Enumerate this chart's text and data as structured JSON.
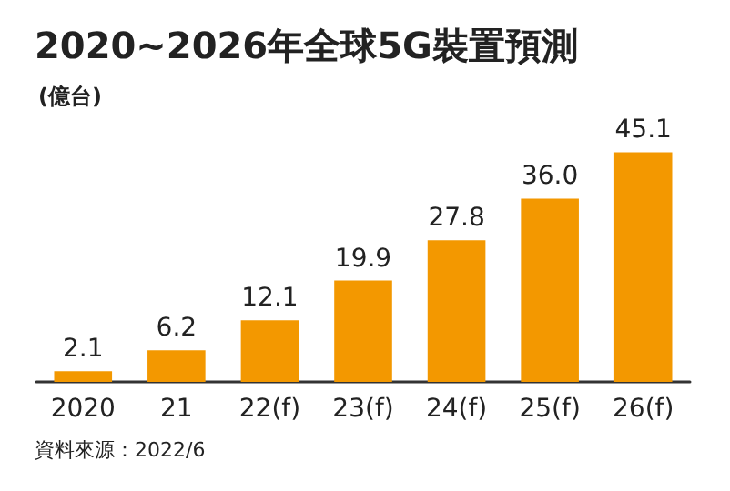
{
  "chart_data": {
    "type": "bar",
    "title": "2020~2026年全球5G裝置預測",
    "ylabel": "(億台)",
    "categories": [
      "2020",
      "21",
      "22(f)",
      "23(f)",
      "24(f)",
      "25(f)",
      "26(f)"
    ],
    "values": [
      2.1,
      6.2,
      12.1,
      19.9,
      27.8,
      36.0,
      45.1
    ],
    "color": "#f39800",
    "value_labels": [
      "2.1",
      "6.2",
      "12.1",
      "19.9",
      "27.8",
      "36.0",
      "45.1"
    ],
    "annotations": [
      "資料來源：2022/6"
    ]
  }
}
